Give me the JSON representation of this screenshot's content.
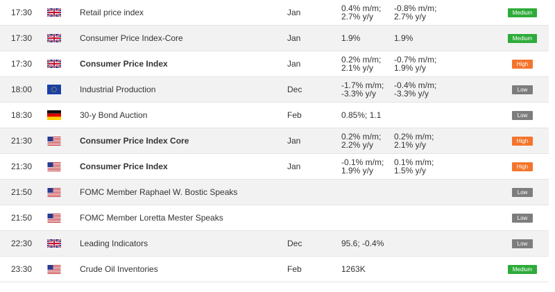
{
  "colors": {
    "medium": "#2eab3a",
    "high": "#f4752b",
    "low": "#7d7d7d",
    "row_even": "#f2f2f2"
  },
  "rows": [
    {
      "time": "17:30",
      "flag": "uk-flag-icon",
      "event": "Retail price index",
      "bold": false,
      "period": "Jan",
      "actual": "0.4% m/m;\n2.7% y/y",
      "previous": "-0.8% m/m;\n2.7% y/y",
      "importance": "Medium",
      "level": "medium"
    },
    {
      "time": "17:30",
      "flag": "uk-flag-icon",
      "event": "Consumer Price Index-Core",
      "bold": false,
      "period": "Jan",
      "actual": "1.9%",
      "previous": "1.9%",
      "importance": "Medium",
      "level": "medium"
    },
    {
      "time": "17:30",
      "flag": "uk-flag-icon",
      "event": "Consumer Price Index",
      "bold": true,
      "period": "Jan",
      "actual": "0.2% m/m;\n2.1% y/y",
      "previous": "-0.7% m/m;\n1.9% y/y",
      "importance": "High",
      "level": "high"
    },
    {
      "time": "18:00",
      "flag": "eu-flag-icon",
      "event": "Industrial Production",
      "bold": false,
      "period": "Dec",
      "actual": "-1.7% m/m;\n-3.3% y/y",
      "previous": "-0.4% m/m;\n-3.3% y/y",
      "importance": "Low",
      "level": "low"
    },
    {
      "time": "18:30",
      "flag": "germany-flag-icon",
      "event": "30-y Bond Auction",
      "bold": false,
      "period": "Feb",
      "actual": "0.85%; 1.1",
      "previous": "",
      "importance": "Low",
      "level": "low"
    },
    {
      "time": "21:30",
      "flag": "us-flag-icon",
      "event": "Consumer Price Index Core",
      "bold": true,
      "period": "Jan",
      "actual": "0.2% m/m;\n2.2% y/y",
      "previous": "0.2% m/m;\n2.1% y/y",
      "importance": "High",
      "level": "high"
    },
    {
      "time": "21:30",
      "flag": "us-flag-icon",
      "event": "Consumer Price Index",
      "bold": true,
      "period": "Jan",
      "actual": "-0.1% m/m;\n1.9% y/y",
      "previous": "0.1% m/m;\n1.5% y/y",
      "importance": "High",
      "level": "high"
    },
    {
      "time": "21:50",
      "flag": "us-flag-icon",
      "event": "FOMC Member Raphael W. Bostic Speaks",
      "bold": false,
      "period": "",
      "actual": "",
      "previous": "",
      "importance": "Low",
      "level": "low"
    },
    {
      "time": "21:50",
      "flag": "us-flag-icon",
      "event": "FOMC Member Loretta Mester Speaks",
      "bold": false,
      "period": "",
      "actual": "",
      "previous": "",
      "importance": "Low",
      "level": "low"
    },
    {
      "time": "22:30",
      "flag": "uk-flag-icon",
      "event": "Leading Indicators",
      "bold": false,
      "period": "Dec",
      "actual": "95.6; -0.4%",
      "previous": "",
      "importance": "Low",
      "level": "low"
    },
    {
      "time": "23:30",
      "flag": "us-flag-icon",
      "event": "Crude Oil Inventories",
      "bold": false,
      "period": "Feb",
      "actual": "1263K",
      "previous": "",
      "importance": "Medium",
      "level": "medium"
    }
  ]
}
